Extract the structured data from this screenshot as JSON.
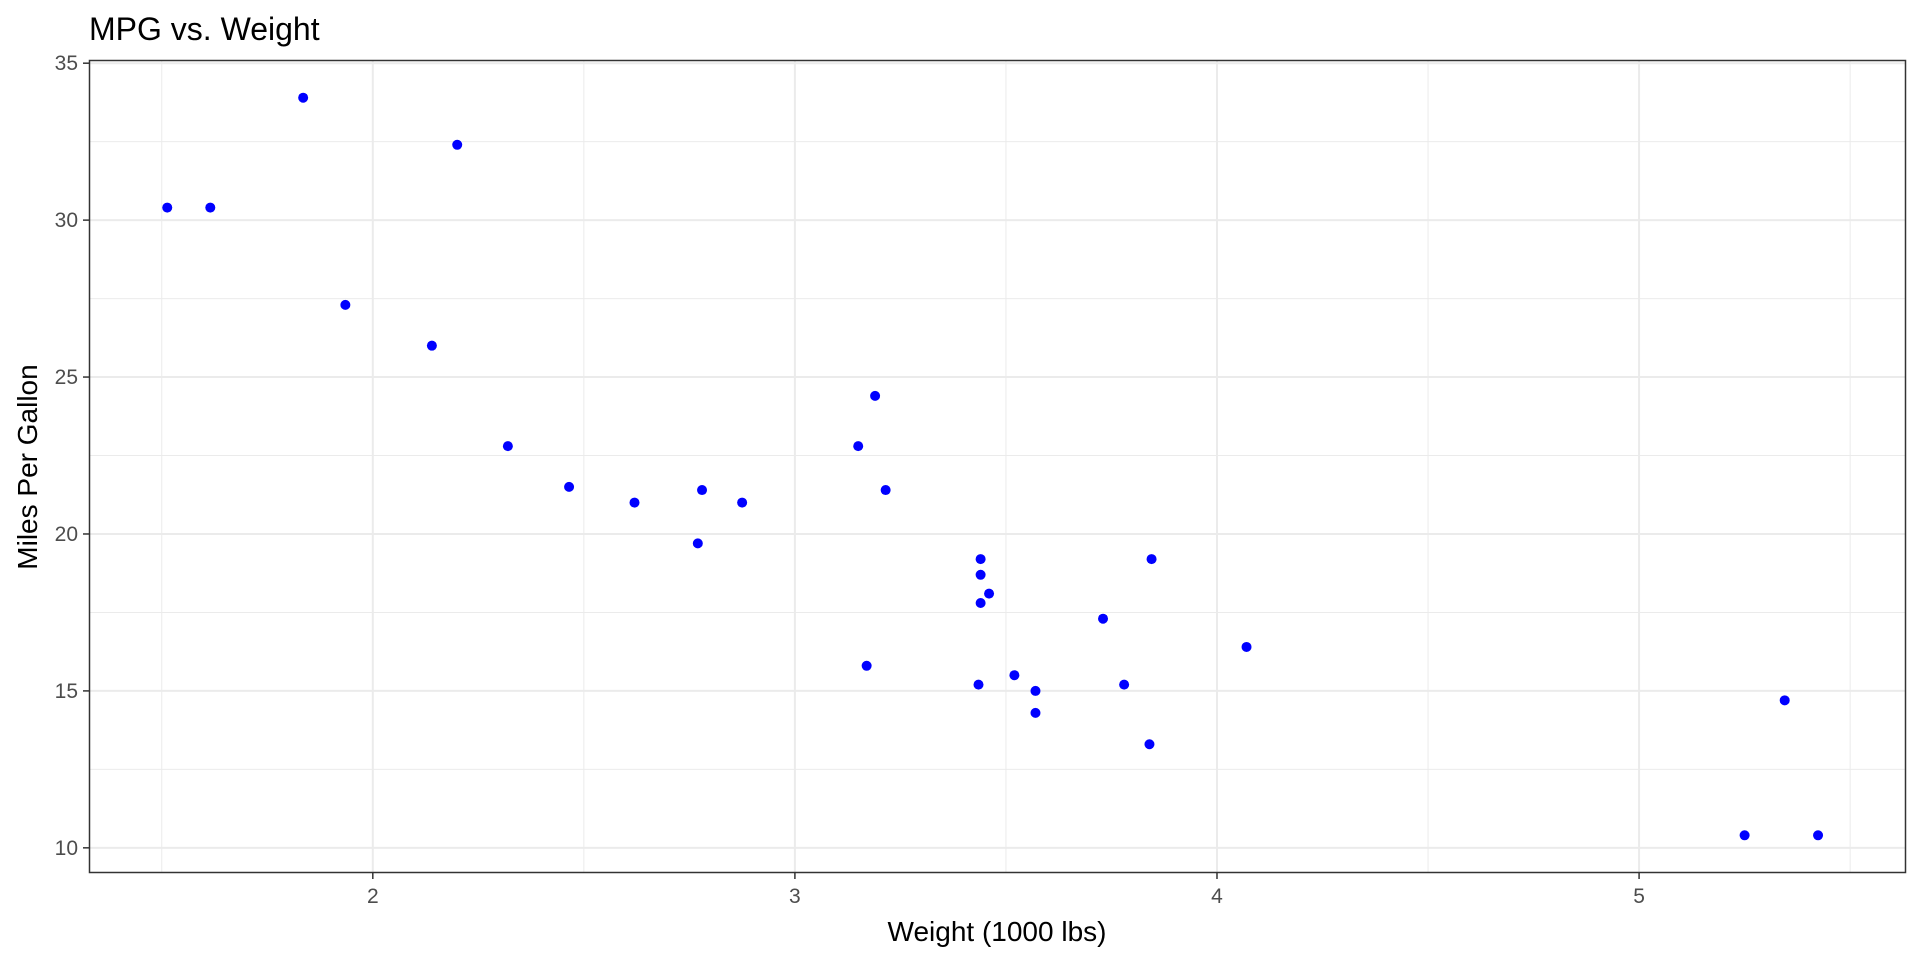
{
  "chart_data": {
    "type": "scatter",
    "title": "MPG vs. Weight",
    "xlabel": "Weight (1000 lbs)",
    "ylabel": "Miles Per Gallon",
    "xlim": [
      1.33,
      5.63
    ],
    "ylim": [
      9.23,
      35.07
    ],
    "x_ticks": [
      2,
      3,
      4,
      5
    ],
    "y_ticks": [
      10,
      15,
      20,
      25,
      30,
      35
    ],
    "x_minor": [
      1.5,
      2.5,
      3.5,
      4.5,
      5.5
    ],
    "y_minor": [
      12.5,
      17.5,
      22.5,
      27.5,
      32.5
    ],
    "grid": true,
    "legend": "none",
    "point_color": "#0000ff",
    "grid_color": "#ebebeb",
    "series": [
      {
        "points": [
          {
            "x": 2.62,
            "y": 21.0
          },
          {
            "x": 2.875,
            "y": 21.0
          },
          {
            "x": 2.32,
            "y": 22.8
          },
          {
            "x": 3.215,
            "y": 21.4
          },
          {
            "x": 3.44,
            "y": 18.7
          },
          {
            "x": 3.46,
            "y": 18.1
          },
          {
            "x": 3.57,
            "y": 14.3
          },
          {
            "x": 3.19,
            "y": 24.4
          },
          {
            "x": 3.15,
            "y": 22.8
          },
          {
            "x": 3.44,
            "y": 19.2
          },
          {
            "x": 3.44,
            "y": 17.8
          },
          {
            "x": 4.07,
            "y": 16.4
          },
          {
            "x": 3.73,
            "y": 17.3
          },
          {
            "x": 3.78,
            "y": 15.2
          },
          {
            "x": 5.25,
            "y": 10.4
          },
          {
            "x": 5.424,
            "y": 10.4
          },
          {
            "x": 5.345,
            "y": 14.7
          },
          {
            "x": 2.2,
            "y": 32.4
          },
          {
            "x": 1.615,
            "y": 30.4
          },
          {
            "x": 1.835,
            "y": 33.9
          },
          {
            "x": 2.465,
            "y": 21.5
          },
          {
            "x": 3.52,
            "y": 15.5
          },
          {
            "x": 3.435,
            "y": 15.2
          },
          {
            "x": 3.84,
            "y": 13.3
          },
          {
            "x": 3.845,
            "y": 19.2
          },
          {
            "x": 1.935,
            "y": 27.3
          },
          {
            "x": 2.14,
            "y": 26.0
          },
          {
            "x": 1.513,
            "y": 30.4
          },
          {
            "x": 3.17,
            "y": 15.8
          },
          {
            "x": 2.77,
            "y": 19.7
          },
          {
            "x": 3.57,
            "y": 15.0
          },
          {
            "x": 2.78,
            "y": 21.4
          }
        ]
      }
    ]
  }
}
